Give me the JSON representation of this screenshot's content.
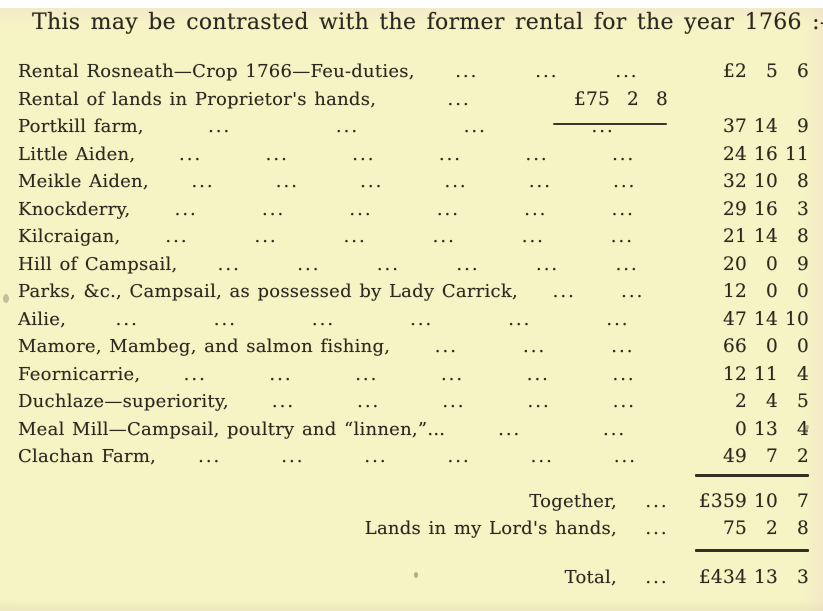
{
  "header": {
    "text": "This may be contrasted with the former rental for the year 1766 :—"
  },
  "table": {
    "leader_glyph": "...",
    "rows": [
      {
        "label": "Rental Rosneath—Crop 1766—Feu-duties,",
        "leaders": 3,
        "pounds": "£2",
        "shillings": "5",
        "pence": "6"
      },
      {
        "label": "Rental of lands in Proprietor's hands,",
        "leaders": 1,
        "mid": {
          "pounds": "£75",
          "shillings": "2",
          "pence": "8"
        },
        "pounds": "",
        "shillings": "",
        "pence": ""
      },
      {
        "label": "Portkill farm,",
        "leaders": 4,
        "mid_rule": true,
        "pounds": "37",
        "shillings": "14",
        "pence": "9"
      },
      {
        "label": "Little Aiden,",
        "leaders": 6,
        "pounds": "24",
        "shillings": "16",
        "pence": "11"
      },
      {
        "label": "Meikle Aiden,",
        "leaders": 6,
        "pounds": "32",
        "shillings": "10",
        "pence": "8"
      },
      {
        "label": "Knockderry,",
        "leaders": 6,
        "pounds": "29",
        "shillings": "16",
        "pence": "3"
      },
      {
        "label": "Kilcraigan,",
        "leaders": 6,
        "pounds": "21",
        "shillings": "14",
        "pence": "8"
      },
      {
        "label": "Hill of Campsail,",
        "leaders": 6,
        "pounds": "20",
        "shillings": "0",
        "pence": "9"
      },
      {
        "label": "Parks, &c., Campsail, as possessed by Lady Carrick,",
        "leaders": 2,
        "pounds": "12",
        "shillings": "0",
        "pence": "0"
      },
      {
        "label": "Ailie,",
        "leaders": 6,
        "pounds": "47",
        "shillings": "14",
        "pence": "10"
      },
      {
        "label": "Mamore, Mambeg, and salmon fishing,",
        "leaders": 3,
        "pounds": "66",
        "shillings": "0",
        "pence": "0"
      },
      {
        "label": "Feornicarrie,",
        "leaders": 6,
        "pounds": "12",
        "shillings": "11",
        "pence": "4"
      },
      {
        "label": "Duchlaze—superiority,",
        "leaders": 5,
        "pounds": "2",
        "shillings": "4",
        "pence": "5"
      },
      {
        "label": "Meal Mill—Campsail, poultry and “linnen,”...",
        "leaders": 2,
        "pounds": "0",
        "shillings": "13",
        "pence": "4"
      },
      {
        "label": "Clachan Farm,",
        "leaders": 6,
        "pounds": "49",
        "shillings": "7",
        "pence": "2"
      }
    ],
    "summary": [
      {
        "label": "Together,",
        "leaders": 1,
        "pounds": "£359",
        "shillings": "10",
        "pence": "7",
        "rule_above": true
      },
      {
        "label": "Lands in my Lord's hands,",
        "leaders": 1,
        "pounds": "75",
        "shillings": "2",
        "pence": "8",
        "rule_above": false
      },
      {
        "label": "Total,",
        "leaders": 1,
        "pounds": "£434",
        "shillings": "13",
        "pence": "3",
        "rule_above": true
      }
    ]
  },
  "colors": {
    "paper": "#f6f3c4",
    "ink": "#2b2820"
  }
}
